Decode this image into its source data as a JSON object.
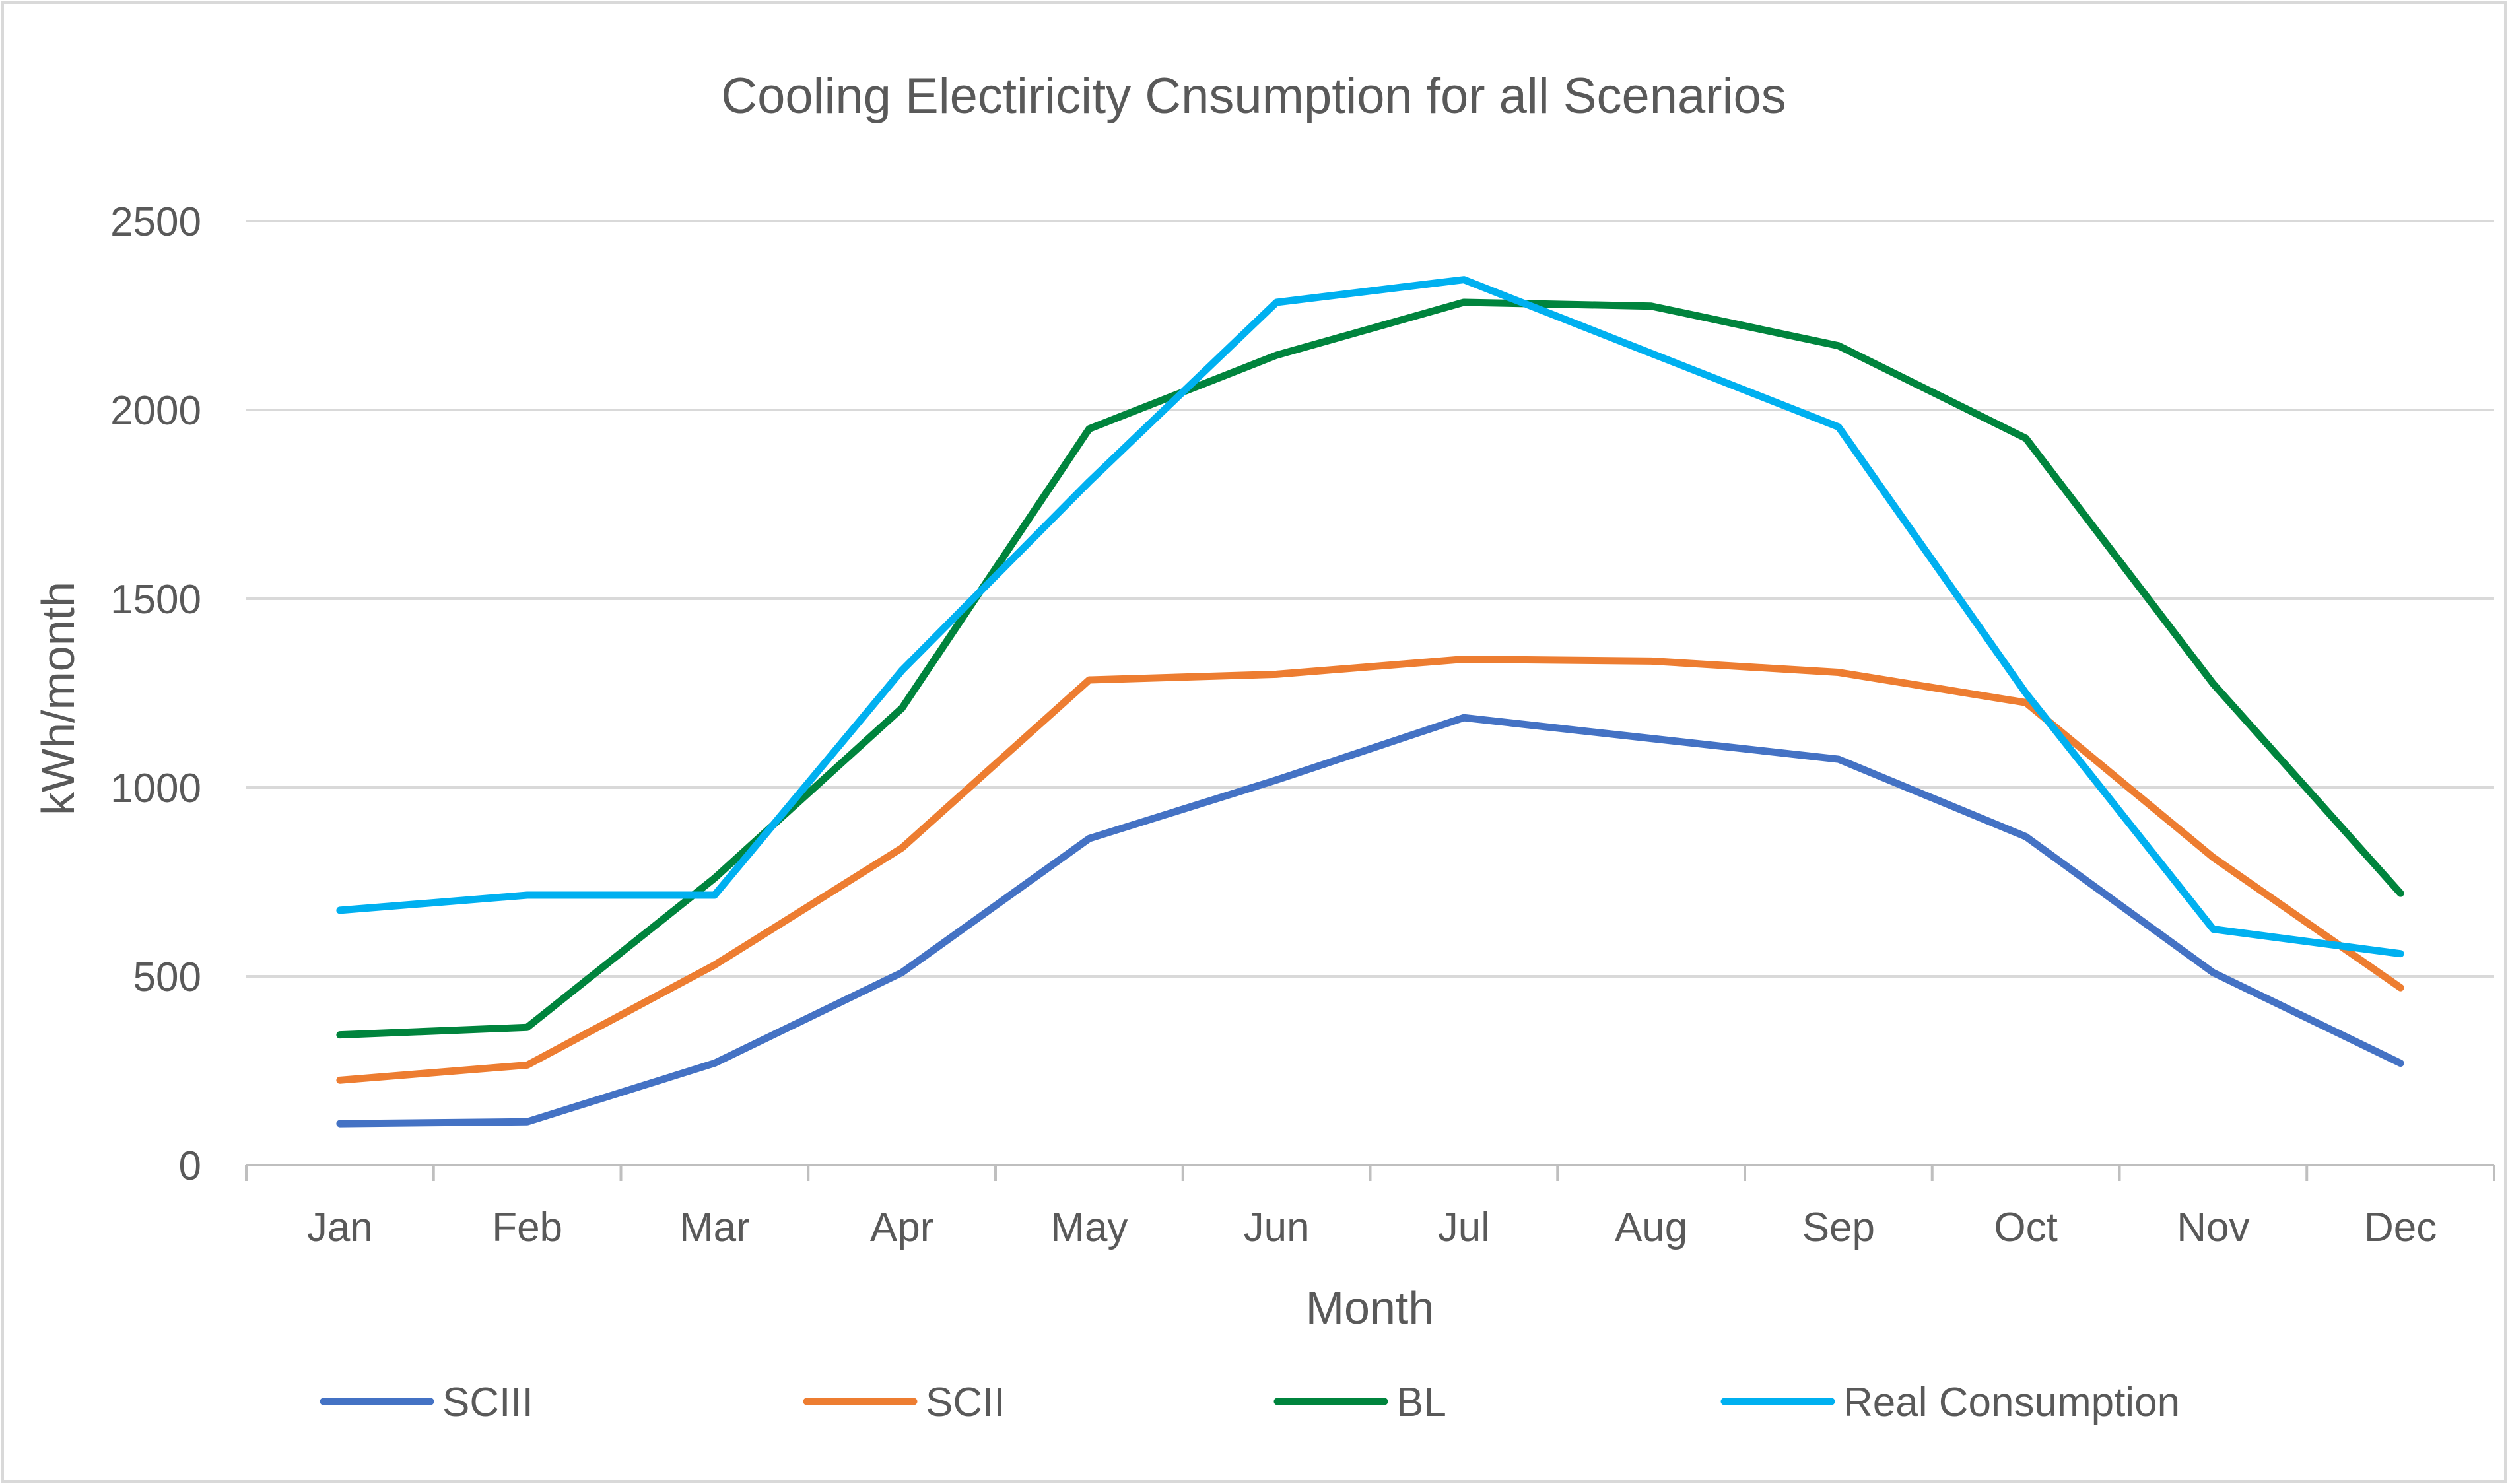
{
  "chart_data": {
    "type": "line",
    "title": "Cooling Electiricity Cnsumption for all Scenarios",
    "xlabel": "Month",
    "ylabel": "kWh/month",
    "categories": [
      "Jan",
      "Feb",
      "Mar",
      "Apr",
      "May",
      "Jun",
      "Jul",
      "Aug",
      "Sep",
      "Oct",
      "Nov",
      "Dec"
    ],
    "ylim": [
      0,
      2500
    ],
    "yticks": [
      0,
      500,
      1000,
      1500,
      2000,
      2500
    ],
    "grid": true,
    "legend_position": "bottom",
    "series": [
      {
        "name": "SCIII",
        "color": "#4472C4",
        "values": [
          110,
          115,
          270,
          510,
          865,
          1020,
          1185,
          1130,
          1075,
          870,
          510,
          270
        ]
      },
      {
        "name": "SCII",
        "color": "#ED7D31",
        "values": [
          225,
          265,
          530,
          840,
          1285,
          1300,
          1340,
          1335,
          1305,
          1225,
          815,
          470
        ]
      },
      {
        "name": "BL",
        "color": "#00843D",
        "values": [
          345,
          365,
          760,
          1210,
          1950,
          2145,
          2285,
          2275,
          2170,
          1925,
          1275,
          720
        ]
      },
      {
        "name": "Real Consumption",
        "color": "#00B0F0",
        "values": [
          675,
          715,
          715,
          1310,
          1810,
          2285,
          2345,
          2150,
          1955,
          1250,
          625,
          560
        ]
      }
    ]
  }
}
